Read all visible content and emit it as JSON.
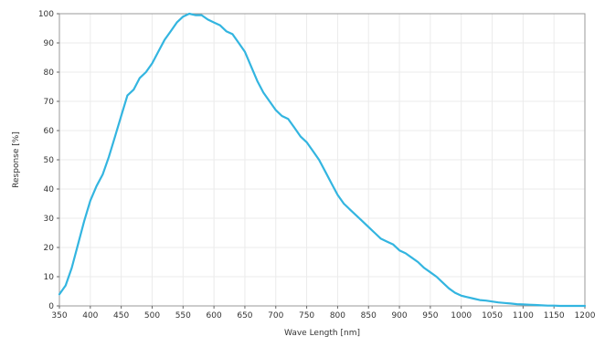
{
  "chart_data": {
    "type": "line",
    "title": "",
    "xlabel": "Wave Length [nm]",
    "ylabel": "Response  [%]",
    "xlim": [
      350,
      1200
    ],
    "ylim": [
      0,
      100
    ],
    "x_ticks": [
      "350",
      "400",
      "450",
      "500",
      "550",
      "600",
      "650",
      "700",
      "750",
      "800",
      "850",
      "900",
      "950",
      "1000",
      "1050",
      "1100",
      "1150",
      "1200"
    ],
    "y_ticks": [
      "0",
      "10",
      "20",
      "30",
      "40",
      "50",
      "60",
      "70",
      "80",
      "90",
      "100"
    ],
    "grid": true,
    "legend": "none",
    "line_color": "#33b5e0",
    "series": [
      {
        "name": "",
        "x": [
          350,
          360,
          370,
          380,
          390,
          400,
          410,
          420,
          430,
          440,
          450,
          460,
          470,
          480,
          490,
          500,
          510,
          520,
          530,
          540,
          550,
          560,
          570,
          580,
          590,
          600,
          610,
          620,
          630,
          640,
          650,
          660,
          670,
          680,
          690,
          700,
          710,
          720,
          730,
          740,
          750,
          760,
          770,
          780,
          790,
          800,
          810,
          820,
          830,
          840,
          850,
          860,
          870,
          880,
          890,
          900,
          910,
          920,
          930,
          940,
          950,
          960,
          970,
          980,
          990,
          1000,
          1010,
          1020,
          1030,
          1040,
          1050,
          1060,
          1070,
          1080,
          1090,
          1100,
          1110,
          1120,
          1130,
          1140,
          1150,
          1160,
          1170,
          1180,
          1190,
          1200
        ],
        "y": [
          4,
          7,
          13,
          21,
          29,
          36,
          41,
          45,
          51,
          58,
          65,
          72,
          74,
          78,
          80,
          83,
          87,
          91,
          94,
          97,
          99,
          100,
          99.5,
          99.5,
          98,
          97,
          96,
          94,
          93,
          90,
          87,
          82,
          77,
          73,
          70,
          67,
          65,
          64,
          61,
          58,
          56,
          53,
          50,
          46,
          42,
          38,
          35,
          33,
          31,
          29,
          27,
          25,
          23,
          22,
          21,
          19,
          18,
          16.5,
          15,
          13,
          11.5,
          10,
          8,
          6,
          4.5,
          3.5,
          3,
          2.5,
          2,
          1.8,
          1.5,
          1.2,
          1,
          0.8,
          0.6,
          0.5,
          0.4,
          0.3,
          0.2,
          0.1,
          0.1,
          0,
          0,
          0,
          0,
          0
        ]
      }
    ]
  }
}
